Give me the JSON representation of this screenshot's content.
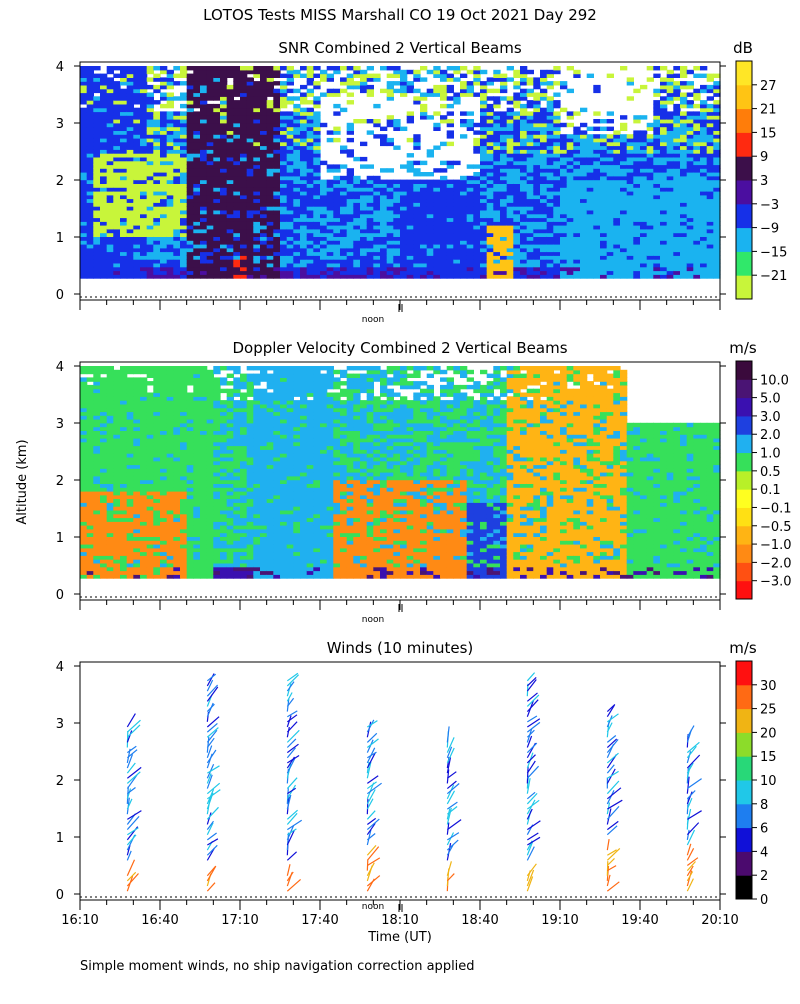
{
  "figure": {
    "main_title": "LOTOS Tests MISS Marshall CO  19 Oct 2021 Day 292",
    "ylabel": "Altitude (km)",
    "xlabel": "Time (UT)",
    "footnote": "Simple moment winds, no ship navigation correction applied",
    "noon_label": "noon",
    "x_tick_labels": [
      "16:10",
      "16:40",
      "17:10",
      "17:40",
      "18:10",
      "18:40",
      "19:10",
      "19:40",
      "20:10"
    ],
    "y_tick_labels": [
      "0",
      "1",
      "2",
      "3",
      "4"
    ]
  },
  "chart_data": [
    {
      "type": "heatmap",
      "title": "SNR Combined 2 Vertical Beams",
      "xlim": [
        "16:10",
        "20:10"
      ],
      "ylim": [
        0,
        4
      ],
      "colorbar": {
        "unit": "dB",
        "labels": [
          "27",
          "21",
          "15",
          "9",
          "3",
          "−3",
          "−9",
          "−15",
          "−21"
        ],
        "colors": [
          "#c8f53a",
          "#30e86a",
          "#1ab3f0",
          "#1630e8",
          "#4b0ea0",
          "#3c0f4a",
          "#ff2a10",
          "#ff7d0a",
          "#ffc414",
          "#ffe626"
        ]
      },
      "regions": [
        {
          "t0": "16:10",
          "t1": "16:35",
          "z0": 0.3,
          "z1": 4.0,
          "class": 3
        },
        {
          "t0": "16:14",
          "t1": "16:50",
          "z0": 1.0,
          "z1": 2.5,
          "class": 0
        },
        {
          "t0": "16:50",
          "t1": "17:25",
          "z0": 0.3,
          "z1": 4.0,
          "class": 5
        },
        {
          "t0": "17:08",
          "t1": "17:12",
          "z0": 0.3,
          "z1": 0.7,
          "class": 6
        },
        {
          "t0": "17:40",
          "t1": "18:40",
          "z0": 2.0,
          "z1": 3.5,
          "class": -1
        },
        {
          "t0": "18:10",
          "t1": "18:40",
          "z0": 0.3,
          "z1": 2.0,
          "class": 3
        },
        {
          "t0": "18:42",
          "t1": "18:52",
          "z0": 0.3,
          "z1": 1.2,
          "class": 8
        },
        {
          "t0": "19:10",
          "t1": "19:45",
          "z0": 2.8,
          "z1": 4.0,
          "class": -1
        },
        {
          "t0": "19:10",
          "t1": "20:10",
          "z0": 0.3,
          "z1": 2.0,
          "class": 2
        }
      ]
    },
    {
      "type": "heatmap",
      "title": "Doppler Velocity Combined 2 Vertical Beams",
      "xlim": [
        "16:10",
        "20:10"
      ],
      "ylim": [
        0,
        4
      ],
      "colorbar": {
        "unit": "m/s",
        "labels": [
          "10.0",
          "5.0",
          "3.0",
          "2.0",
          "1.0",
          "0.5",
          "0.1",
          "−0.1",
          "−0.5",
          "−1.0",
          "−2.0",
          "−3.0"
        ],
        "colors": [
          "#ff1010",
          "#ff5012",
          "#ff8a14",
          "#ffb414",
          "#ffe014",
          "#ffff20",
          "#b8f028",
          "#36e05a",
          "#20b0f0",
          "#1e40e0",
          "#3a10b0",
          "#4a1474",
          "#3a0a3c"
        ]
      },
      "regions": [
        {
          "t0": "16:10",
          "t1": "17:00",
          "z0": 0.3,
          "z1": 4.0,
          "class": 7
        },
        {
          "t0": "16:10",
          "t1": "16:50",
          "z0": 0.3,
          "z1": 1.8,
          "class": 2
        },
        {
          "t0": "17:15",
          "t1": "17:45",
          "z0": 0.3,
          "z1": 4.0,
          "class": 8
        },
        {
          "t0": "17:45",
          "t1": "18:35",
          "z0": 0.3,
          "z1": 2.0,
          "class": 2
        },
        {
          "t0": "18:35",
          "t1": "18:50",
          "z0": 0.3,
          "z1": 1.6,
          "class": 9
        },
        {
          "t0": "18:50",
          "t1": "19:35",
          "z0": 0.3,
          "z1": 4.0,
          "class": 3
        },
        {
          "t0": "19:35",
          "t1": "20:10",
          "z0": 0.3,
          "z1": 3.0,
          "class": 7
        }
      ]
    },
    {
      "type": "scatter",
      "title": "Winds (10 minutes)",
      "xlim": [
        "16:10",
        "20:10"
      ],
      "ylim": [
        0,
        4
      ],
      "colorbar": {
        "unit": "m/s",
        "labels": [
          "0",
          "2",
          "4",
          "6",
          "8",
          "10",
          "15",
          "20",
          "25",
          "30"
        ],
        "colors": [
          "#000000",
          "#4b0a6e",
          "#1010d8",
          "#1e7ef0",
          "#20c8e8",
          "#28d878",
          "#8cdc2a",
          "#f0b414",
          "#ff6a14",
          "#ff1010"
        ]
      },
      "profiles": [
        {
          "time": "16:30",
          "low_top_km": 0.4
        },
        {
          "time": "17:00",
          "low_top_km": 0.4
        },
        {
          "time": "17:30",
          "low_top_km": 0.4
        },
        {
          "time": "18:00",
          "low_top_km": 0.7
        },
        {
          "time": "18:30",
          "low_top_km": 0.4
        },
        {
          "time": "19:00",
          "low_top_km": 0.4
        },
        {
          "time": "19:30",
          "low_top_km": 0.8
        },
        {
          "time": "20:00",
          "low_top_km": 0.7
        }
      ]
    }
  ]
}
